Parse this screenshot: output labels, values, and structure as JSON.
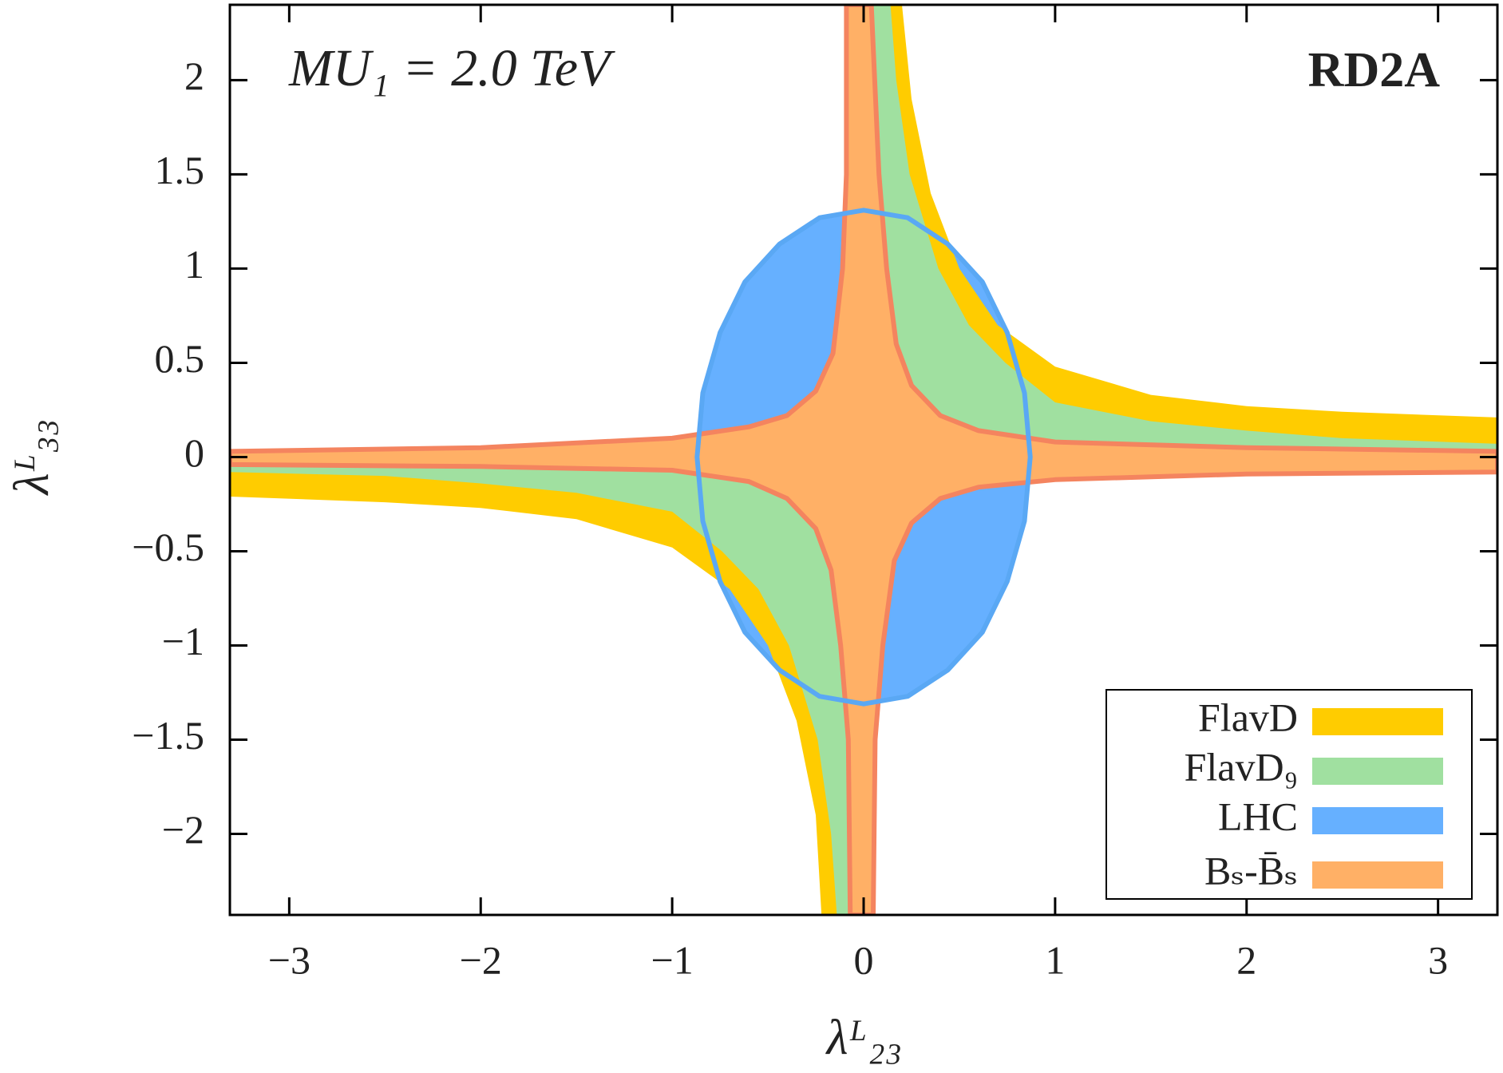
{
  "chart_data": {
    "type": "region",
    "annotation": "MU₁ = 2.0 TeV",
    "label": "RD2A",
    "x_label": "λᴸ₂₃",
    "y_label": "λᴸ₃₃",
    "xlim": [
      -3.31,
      3.31
    ],
    "ylim": [
      -2.43,
      2.4
    ],
    "xticks": [
      {
        "value": -3,
        "label": "−3"
      },
      {
        "value": -2,
        "label": "−2"
      },
      {
        "value": -1,
        "label": "−1"
      },
      0,
      1,
      2,
      3
    ],
    "yticks": [
      {
        "value": -2,
        "label": "−2"
      },
      {
        "value": -1.5,
        "label": "−1.5"
      },
      {
        "value": -1,
        "label": "−1"
      },
      {
        "value": -0.5,
        "label": "−0.5"
      },
      0,
      0.5,
      1,
      1.5,
      2
    ],
    "legend": "lower right",
    "series": [
      {
        "name": "FlavD",
        "color": "#ffcc00",
        "polygons": [
          {
            "x": [
              0,
              0.2,
              0.25,
              0.35,
              0.5,
              0.7,
              1.0,
              1.5,
              2.0,
              2.5,
              3.31,
              3.31,
              0
            ],
            "y": [
              2.4,
              2.4,
              1.9,
              1.4,
              1.0,
              0.7,
              0.48,
              0.33,
              0.27,
              0.24,
              0.21,
              0,
              0
            ]
          },
          {
            "x": [
              0,
              -0.22,
              -0.25,
              -0.35,
              -0.5,
              -0.7,
              -1.0,
              -1.5,
              -2.0,
              -2.5,
              -3.31,
              -3.31,
              0
            ],
            "y": [
              -2.43,
              -2.43,
              -1.9,
              -1.4,
              -1.0,
              -0.7,
              -0.48,
              -0.33,
              -0.27,
              -0.24,
              -0.21,
              0,
              0
            ]
          }
        ]
      },
      {
        "name": "FlavD₉",
        "color": "#a0e0a0",
        "polygons": [
          {
            "x": [
              0,
              0.14,
              0.17,
              0.24,
              0.39,
              0.55,
              0.74,
              1.0,
              1.5,
              2.0,
              2.5,
              3.31,
              3.31,
              0
            ],
            "y": [
              2.4,
              2.4,
              2.0,
              1.5,
              1.0,
              0.7,
              0.5,
              0.29,
              0.19,
              0.14,
              0.1,
              0.07,
              0,
              0
            ]
          },
          {
            "x": [
              0,
              -0.14,
              -0.17,
              -0.24,
              -0.39,
              -0.55,
              -0.74,
              -1.0,
              -1.5,
              -2.0,
              -2.5,
              -3.31,
              -3.31,
              0
            ],
            "y": [
              -2.43,
              -2.43,
              -2.0,
              -1.5,
              -1.0,
              -0.7,
              -0.5,
              -0.29,
              -0.19,
              -0.14,
              -0.1,
              -0.08,
              0,
              0
            ]
          }
        ]
      },
      {
        "name": "LHC",
        "color": "#66b0ff",
        "edge_color": "#5aa8f4",
        "polygons": [
          {
            "x": [
              0.87,
              0.84,
              0.75,
              0.62,
              0.44,
              0.23,
              0,
              -0.23,
              -0.44,
              -0.62,
              -0.75,
              -0.84,
              -0.87,
              -0.84,
              -0.75,
              -0.62,
              -0.44,
              -0.23,
              0,
              0.23,
              0.44,
              0.62,
              0.75,
              0.84
            ],
            "y": [
              0,
              0.34,
              0.66,
              0.93,
              1.13,
              1.27,
              1.31,
              1.27,
              1.13,
              0.93,
              0.66,
              0.34,
              0,
              -0.34,
              -0.66,
              -0.93,
              -1.13,
              -1.27,
              -1.31,
              -1.27,
              -1.13,
              -0.93,
              -0.66,
              -0.34
            ]
          }
        ]
      },
      {
        "name": "Bₛ-B̄ₛ",
        "color": "#ffb066",
        "edge_color": "#f4845f",
        "polygons": [
          {
            "x": [
              -0.09,
              0.04,
              0.08,
              0.12,
              0.17,
              0.25,
              0.4,
              0.6,
              1.0,
              2.0,
              3.31,
              3.31,
              2.0,
              1.0,
              0.6,
              0.4,
              0.25,
              0.16,
              0.1,
              0.06,
              0.05,
              -0.07,
              -0.08,
              -0.12,
              -0.17,
              -0.25,
              -0.4,
              -0.6,
              -1.0,
              -2.0,
              -3.31,
              -3.31,
              -2.0,
              -1.0,
              -0.6,
              -0.4,
              -0.25,
              -0.16,
              -0.11,
              -0.09
            ],
            "y": [
              2.4,
              2.4,
              1.5,
              1.0,
              0.6,
              0.38,
              0.22,
              0.14,
              0.08,
              0.05,
              0.03,
              -0.08,
              -0.09,
              -0.12,
              -0.16,
              -0.22,
              -0.35,
              -0.55,
              -1.0,
              -1.5,
              -2.43,
              -2.43,
              -1.5,
              -1.0,
              -0.6,
              -0.38,
              -0.22,
              -0.13,
              -0.07,
              -0.05,
              -0.04,
              0.03,
              0.05,
              0.1,
              0.16,
              0.22,
              0.35,
              0.55,
              1.0,
              1.5
            ]
          }
        ]
      }
    ]
  }
}
